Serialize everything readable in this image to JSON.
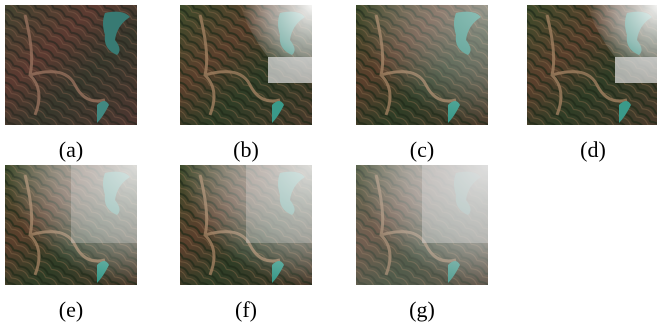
{
  "figure": {
    "panels": [
      "(a)",
      "(b)",
      "(c)",
      "(d)",
      "(e)",
      "(f)",
      "(g)"
    ]
  }
}
